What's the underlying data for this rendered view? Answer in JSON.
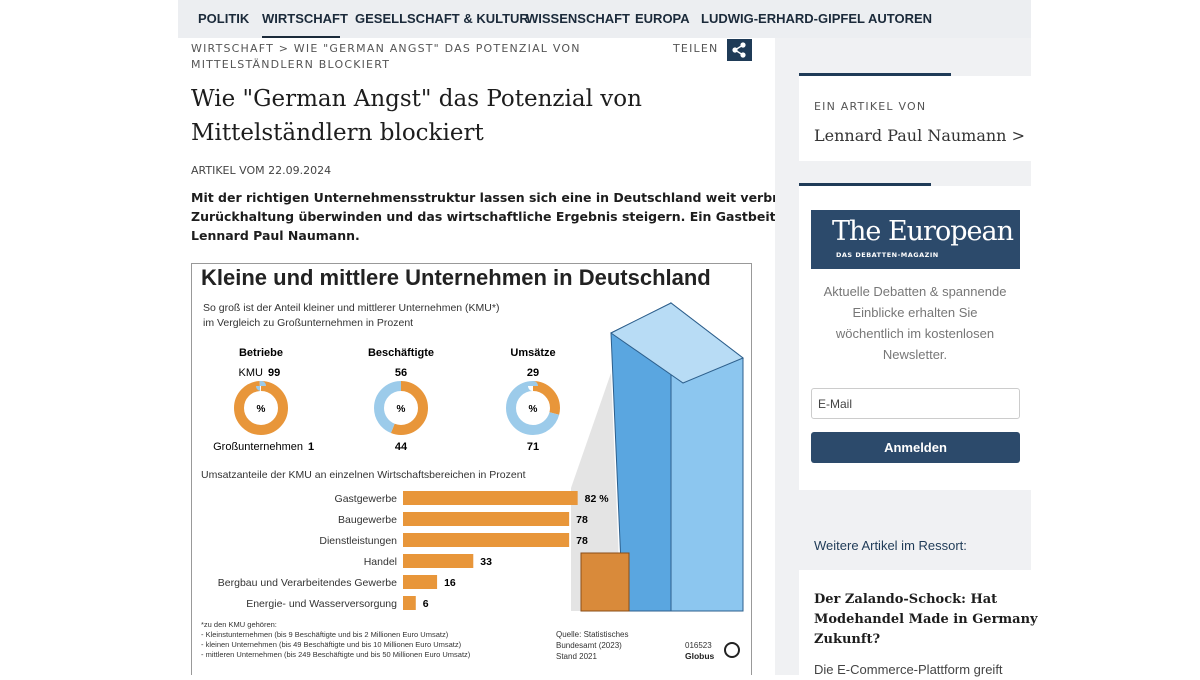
{
  "nav": {
    "items": [
      "POLITIK",
      "WIRTSCHAFT",
      "GESELLSCHAFT & KULTUR",
      "WISSENSCHAFT",
      "EUROPA",
      "LUDWIG-ERHARD-GIPFEL",
      "AUTOREN"
    ]
  },
  "breadcrumb": [
    "WIRTSCHAFT > WIE \"GERMAN ANGST\" DAS POTENZIAL VON",
    "MITTELSTÄNDLERN BLOCKIERT"
  ],
  "share": "TEILEN",
  "article": {
    "title": [
      "Wie \"German Angst\" das Potenzial von",
      "Mittelständlern blockiert"
    ],
    "date": "ARTIKEL VOM 22.09.2024",
    "lead": [
      "Mit der richtigen Unternehmensstruktur lassen sich eine in Deutschland weit verbreitete",
      "Zurückhaltung überwinden und das wirtschaftliche Ergebnis steigern. Ein Gastbeitrag von",
      "Lennard Paul Naumann."
    ]
  },
  "infographic": {
    "title": "Kleine und mittlere Unternehmen in Deutschland",
    "subtitle": [
      "So groß ist der Anteil kleiner und mittlerer Unternehmen (KMU*)",
      "im Vergleich zu Großunternehmen in Prozent"
    ],
    "unit": "%",
    "legend_kmu": "KMU",
    "legend_large": "Großunternehmen",
    "kmu_color": "#e8963a",
    "large_color": "#9ccbea",
    "donuts": [
      {
        "label": "Betriebe",
        "kmu": 99,
        "large": 1
      },
      {
        "label": "Beschäftigte",
        "kmu": 56,
        "large": 44
      },
      {
        "label": "Umsätze",
        "kmu": 29,
        "large": 71
      }
    ],
    "bar_title": "Umsatzanteile der KMU an einzelnen Wirtschaftsbereichen in Prozent",
    "bars": {
      "categories": [
        "Gastgewerbe",
        "Baugewerbe",
        "Dienstleistungen",
        "Handel",
        "Bergbau und Verarbeitendes Gewerbe",
        "Energie- und Wasserversorgung"
      ],
      "values": [
        82,
        78,
        78,
        33,
        16,
        6
      ],
      "value_labels": [
        "82 %",
        "78",
        "78",
        "33",
        "16",
        "6"
      ],
      "color": "#e8963a"
    },
    "footnote": [
      "*zu den KMU gehören:",
      "- Kleinstunternehmen (bis 9 Beschäftigte und bis 2 Millionen Euro Umsatz)",
      "- kleinen Unternehmen (bis 49 Beschäftigte und bis 10 Millionen Euro Umsatz)",
      "- mittleren Unternehmen (bis 249 Beschäftigte und bis 50 Millionen Euro Umsatz)"
    ],
    "source": [
      "Quelle: Statistisches",
      "Bundesamt (2023)",
      "Stand 2021"
    ],
    "code": "016523",
    "brand": "Globus"
  },
  "sidebar": {
    "author_caption": "EIN ARTIKEL VON",
    "author": "Lennard Paul Naumann >",
    "logo": "The European",
    "logo_sub": "DAS DEBATTEN-MAGAZIN",
    "newsletter_text": [
      "Aktuelle Debatten & spannende",
      "Einblicke erhalten Sie",
      "wöchentlich im kostenlosen",
      "Newsletter."
    ],
    "email_placeholder": "E-Mail",
    "button": "Anmelden",
    "more_heading": "Weitere Artikel im Ressort:",
    "teaser_title": [
      "Der Zalando-Schock: Hat",
      "Modehandel Made in Germany",
      "Zukunft?"
    ],
    "teaser_text": "Die E-Commerce-Plattform greift"
  }
}
